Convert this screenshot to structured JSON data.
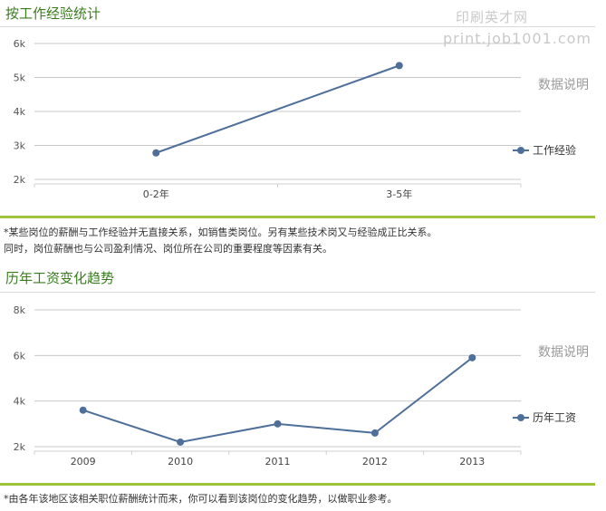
{
  "watermark": {
    "line1": "印刷英才网",
    "line2": "print.job1001.com"
  },
  "section1": {
    "title": "按工作经验统计",
    "data_note": "数据说明",
    "legend": "工作经验",
    "note_lines": [
      "*某些岗位的薪酬与工作经验并无直接关系，如销售类岗位。另有某些技术岗又与经验成正比关系。",
      "同时，岗位薪酬也与公司盈利情况、岗位所在公司的重要程度等因素有关。"
    ]
  },
  "section2": {
    "title": "历年工资变化趋势",
    "data_note": "数据说明",
    "legend": "历年工资",
    "note_lines": [
      "*由各年该地区该相关职位薪酬统计而来，你可以看到该岗位的变化趋势，以做职业参考。"
    ]
  },
  "colors": {
    "series": "#4e6f9a",
    "accent_green": "#9dc43a",
    "title_green": "#3a7d1f",
    "grid": "#c8c8c8"
  },
  "chart_data": [
    {
      "type": "line",
      "title": "按工作经验统计",
      "categories": [
        "0-2年",
        "3-5年"
      ],
      "series": [
        {
          "name": "工作经验",
          "values": [
            2780,
            5350
          ]
        }
      ],
      "yticks": [
        "2k",
        "3k",
        "4k",
        "5k",
        "6k"
      ],
      "ytick_values": [
        2000,
        3000,
        4000,
        5000,
        6000
      ],
      "ylim": [
        2000,
        6000
      ],
      "grid": true,
      "legend": "right"
    },
    {
      "type": "line",
      "title": "历年工资变化趋势",
      "categories": [
        "2009",
        "2010",
        "2011",
        "2012",
        "2013"
      ],
      "series": [
        {
          "name": "历年工资",
          "values": [
            3600,
            2200,
            3000,
            2600,
            5900
          ]
        }
      ],
      "yticks": [
        "2k",
        "4k",
        "6k",
        "8k"
      ],
      "ytick_values": [
        2000,
        4000,
        6000,
        8000
      ],
      "ylim": [
        2000,
        8000
      ],
      "grid": true,
      "legend": "right"
    }
  ]
}
